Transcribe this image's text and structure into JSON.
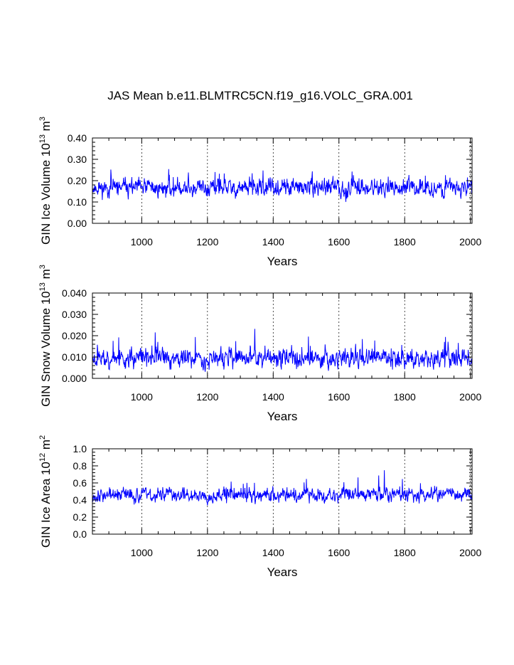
{
  "title": "JAS Mean b.e11.BLMTRC5CN.f19_g16.VOLC_GRA.001",
  "colors": {
    "line": "#0000ff",
    "axis": "#000000",
    "grid": "#000000"
  },
  "chart_data": [
    {
      "type": "line",
      "series": [
        {
          "name": "GIN Ice Volume",
          "seed": 11,
          "base": 0.165,
          "amp": 0.055,
          "minv": 0.03,
          "maxv": 0.37
        }
      ],
      "x_range": [
        850,
        2005
      ],
      "xticks": [
        1000,
        1200,
        1400,
        1600,
        1800,
        2000
      ],
      "xtick_labels": [
        "1000",
        "1200",
        "1400",
        "1600",
        "1800",
        "2000"
      ],
      "ylim": [
        0,
        0.4
      ],
      "yticks": [
        0,
        0.1,
        0.2,
        0.3,
        0.4
      ],
      "ytick_labels": [
        "0.00",
        "0.10",
        "0.20",
        "0.30",
        "0.40"
      ],
      "ylabel": {
        "prefix": "GIN Ice Volume 10",
        "exp": "13",
        "unit": " m",
        "unit_exp": "3"
      },
      "xlabel": "Years",
      "grid_x": true
    },
    {
      "type": "line",
      "series": [
        {
          "name": "GIN Snow Volume",
          "seed": 23,
          "base": 0.0095,
          "amp": 0.006,
          "minv": 0.002,
          "maxv": 0.039
        }
      ],
      "x_range": [
        850,
        2005
      ],
      "xticks": [
        1000,
        1200,
        1400,
        1600,
        1800,
        2000
      ],
      "xtick_labels": [
        "1000",
        "1200",
        "1400",
        "1600",
        "1800",
        "2000"
      ],
      "ylim": [
        0,
        0.04
      ],
      "yticks": [
        0,
        0.01,
        0.02,
        0.03,
        0.04
      ],
      "ytick_labels": [
        "0.000",
        "0.010",
        "0.020",
        "0.030",
        "0.040"
      ],
      "ylabel": {
        "prefix": "GIN Snow Volume 10",
        "exp": "13",
        "unit": " m",
        "unit_exp": "3"
      },
      "xlabel": "Years",
      "grid_x": true
    },
    {
      "type": "line",
      "series": [
        {
          "name": "GIN Ice Area",
          "seed": 37,
          "base": 0.46,
          "amp": 0.11,
          "minv": 0.12,
          "maxv": 0.87
        }
      ],
      "x_range": [
        850,
        2005
      ],
      "xticks": [
        1000,
        1200,
        1400,
        1600,
        1800,
        2000
      ],
      "xtick_labels": [
        "1000",
        "1200",
        "1400",
        "1600",
        "1800",
        "2000"
      ],
      "ylim": [
        0,
        1.0
      ],
      "yticks": [
        0,
        0.2,
        0.4,
        0.6,
        0.8,
        1.0
      ],
      "ytick_labels": [
        "0.0",
        "0.2",
        "0.4",
        "0.6",
        "0.8",
        "1.0"
      ],
      "ylabel": {
        "prefix": "GIN Ice Area 10",
        "exp": "12",
        "unit": " m",
        "unit_exp": "2"
      },
      "xlabel": "Years",
      "grid_x": true
    }
  ]
}
